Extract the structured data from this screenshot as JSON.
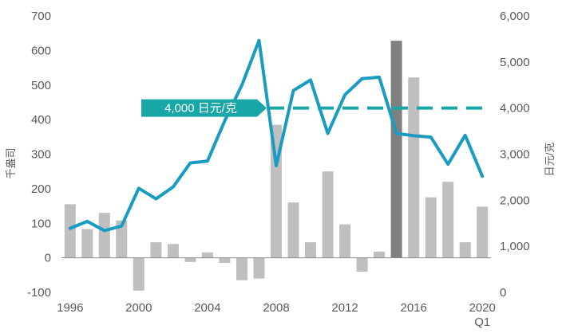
{
  "chart_data": {
    "type": "bar+line",
    "title": "",
    "y_left_label": "千盎司",
    "y_right_label": "日元/克",
    "y_left_range": [
      -100,
      700
    ],
    "y_left_ticks": [
      -100,
      0,
      100,
      200,
      300,
      400,
      500,
      600,
      700
    ],
    "y_right_range": [
      0,
      6000
    ],
    "y_right_ticks": [
      "0",
      "1,000",
      "2,000",
      "3,000",
      "4,000",
      "5,000",
      "6,000"
    ],
    "x_tick_labels": [
      {
        "year": 1996,
        "label": "1996"
      },
      {
        "year": 2000,
        "label": "2000"
      },
      {
        "year": 2004,
        "label": "2004"
      },
      {
        "year": 2008,
        "label": "2008"
      },
      {
        "year": 2012,
        "label": "2012"
      },
      {
        "year": 2016,
        "label": "2016"
      },
      {
        "year": 2020,
        "label": "2020",
        "sublabel": "Q1"
      }
    ],
    "years": [
      1996,
      1997,
      1998,
      1999,
      2000,
      2001,
      2002,
      2003,
      2004,
      2005,
      2006,
      2007,
      2008,
      2009,
      2010,
      2011,
      2012,
      2013,
      2014,
      2015,
      2016,
      2017,
      2018,
      2019,
      2020
    ],
    "bar_values": [
      155,
      83,
      130,
      108,
      -95,
      45,
      40,
      -12,
      15,
      -15,
      -65,
      -60,
      385,
      160,
      45,
      250,
      97,
      -40,
      18,
      628,
      522,
      175,
      220,
      45,
      148
    ],
    "highlight_year": 2015,
    "line_values": [
      1390,
      1540,
      1340,
      1440,
      2260,
      2030,
      2290,
      2810,
      2850,
      3720,
      4500,
      5470,
      2750,
      4380,
      4610,
      3450,
      4290,
      4640,
      4670,
      3450,
      3400,
      3370,
      2780,
      3410,
      2520
    ],
    "reference_line": {
      "value": 4000,
      "label": "4,000 日元/克"
    },
    "colors": {
      "bar": "#bfbfbf",
      "bar_highlight": "#7f7f7f",
      "line": "#1a9bc1",
      "reference": "#18a6a6",
      "axis_text": "#595959"
    }
  }
}
